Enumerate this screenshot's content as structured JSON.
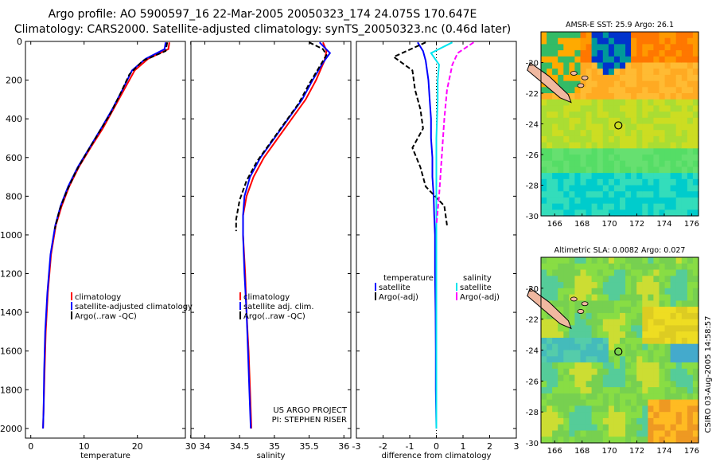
{
  "header": {
    "line1": "Argo profile: AO 5900597_16 22-Mar-2005 20050323_174 24.075S 170.647E",
    "line2": "Climatology: CARS2000. Satellite-adjusted climatology: synTS_20050323.nc (0.46d later)"
  },
  "credit": {
    "line1": "US ARGO PROJECT",
    "line2": "PI: STEPHEN RISER"
  },
  "side_stamp": "CSIRO 03-Aug-2005 14:58:57",
  "colors": {
    "climatology": "#ff0000",
    "satellite": "#0000ff",
    "argo": "#000000",
    "salinity": "#00e5ee",
    "sal_argo": "#ff00ff"
  },
  "chart_data": [
    {
      "type": "line",
      "id": "temperature",
      "xlabel": "temperature",
      "ylabel": "depth",
      "xlim": [
        -1,
        29
      ],
      "ylim": [
        2050,
        0
      ],
      "xticks": [
        0,
        10,
        20,
        30
      ],
      "yticks": [
        0,
        200,
        400,
        600,
        800,
        1000,
        1200,
        1400,
        1600,
        1800,
        2000
      ],
      "legend": [
        "climatology",
        "satellite-adjusted climatology",
        "Argo(..raw  -QC)"
      ],
      "series": [
        {
          "name": "climatology",
          "color": "#ff0000",
          "dash": "",
          "points": [
            [
              26,
              5
            ],
            [
              25.8,
              40
            ],
            [
              22,
              90
            ],
            [
              19.5,
              150
            ],
            [
              17.5,
              250
            ],
            [
              15.5,
              350
            ],
            [
              13.5,
              450
            ],
            [
              11.2,
              550
            ],
            [
              9,
              650
            ],
            [
              7.2,
              750
            ],
            [
              5.8,
              850
            ],
            [
              4.7,
              950
            ],
            [
              3.8,
              1100
            ],
            [
              3.2,
              1300
            ],
            [
              2.8,
              1500
            ],
            [
              2.6,
              1700
            ],
            [
              2.4,
              1900
            ],
            [
              2.3,
              2000
            ]
          ]
        },
        {
          "name": "satellite",
          "color": "#0000ff",
          "dash": "",
          "points": [
            [
              25.3,
              5
            ],
            [
              25.1,
              40
            ],
            [
              21.5,
              90
            ],
            [
              19,
              150
            ],
            [
              17.2,
              250
            ],
            [
              15.3,
              350
            ],
            [
              13.2,
              450
            ],
            [
              11,
              550
            ],
            [
              8.8,
              650
            ],
            [
              7,
              750
            ],
            [
              5.6,
              850
            ],
            [
              4.6,
              950
            ],
            [
              3.7,
              1100
            ],
            [
              3.1,
              1300
            ],
            [
              2.7,
              1500
            ],
            [
              2.5,
              1700
            ],
            [
              2.4,
              1900
            ],
            [
              2.3,
              2000
            ]
          ]
        },
        {
          "name": "argo",
          "color": "#000000",
          "dash": "6,3",
          "points": [
            [
              25.6,
              5
            ],
            [
              25.3,
              50
            ],
            [
              21,
              100
            ],
            [
              18.5,
              170
            ],
            [
              16.8,
              270
            ],
            [
              15,
              370
            ],
            [
              12.8,
              470
            ],
            [
              10.6,
              570
            ],
            [
              8.5,
              670
            ],
            [
              6.8,
              770
            ],
            [
              5.4,
              870
            ],
            [
              4.5,
              970
            ]
          ]
        }
      ]
    },
    {
      "type": "line",
      "id": "salinity",
      "xlabel": "salinity",
      "ylabel": "depth",
      "xlim": [
        33.8,
        36.1
      ],
      "ylim": [
        2050,
        0
      ],
      "xticks": [
        34,
        34.5,
        35,
        35.5,
        36
      ],
      "legend": [
        "climatology",
        "satellite adj. clim.",
        "Argo(..raw  -QC)"
      ],
      "series": [
        {
          "name": "climatology",
          "color": "#ff0000",
          "dash": "",
          "points": [
            [
              35.7,
              5
            ],
            [
              35.75,
              50
            ],
            [
              35.72,
              100
            ],
            [
              35.6,
              200
            ],
            [
              35.45,
              300
            ],
            [
              35.25,
              400
            ],
            [
              35.05,
              500
            ],
            [
              34.85,
              600
            ],
            [
              34.7,
              700
            ],
            [
              34.6,
              800
            ],
            [
              34.55,
              900
            ],
            [
              34.55,
              1000
            ],
            [
              34.58,
              1200
            ],
            [
              34.6,
              1400
            ],
            [
              34.63,
              1600
            ],
            [
              34.65,
              1800
            ],
            [
              34.67,
              2000
            ]
          ]
        },
        {
          "name": "satellite",
          "color": "#0000ff",
          "dash": "",
          "points": [
            [
              35.65,
              5
            ],
            [
              35.8,
              60
            ],
            [
              35.7,
              110
            ],
            [
              35.55,
              200
            ],
            [
              35.4,
              300
            ],
            [
              35.2,
              400
            ],
            [
              35,
              500
            ],
            [
              34.8,
              600
            ],
            [
              34.65,
              700
            ],
            [
              34.57,
              800
            ],
            [
              34.55,
              900
            ],
            [
              34.55,
              1000
            ],
            [
              34.57,
              1200
            ],
            [
              34.6,
              1400
            ],
            [
              34.62,
              1600
            ],
            [
              34.64,
              1800
            ],
            [
              34.66,
              2000
            ]
          ]
        },
        {
          "name": "argo",
          "color": "#000000",
          "dash": "6,3",
          "points": [
            [
              35.5,
              5
            ],
            [
              35.7,
              40
            ],
            [
              35.75,
              70
            ],
            [
              35.65,
              130
            ],
            [
              35.5,
              220
            ],
            [
              35.35,
              320
            ],
            [
              35.15,
              420
            ],
            [
              34.95,
              520
            ],
            [
              34.75,
              620
            ],
            [
              34.6,
              720
            ],
            [
              34.5,
              820
            ],
            [
              34.45,
              920
            ],
            [
              34.45,
              980
            ]
          ]
        }
      ]
    },
    {
      "type": "line",
      "id": "difference",
      "xlabel": "difference from climatology",
      "ylabel": "depth",
      "xlim": [
        -3,
        3
      ],
      "ylim": [
        2050,
        0
      ],
      "xticks": [
        -3,
        -2,
        -1,
        0,
        1,
        2,
        3
      ],
      "legend_temperature": {
        "title": "temperature",
        "items": [
          "satellite",
          "Argo(-adj)"
        ]
      },
      "legend_salinity": {
        "title": "salinity",
        "items": [
          "satellite",
          "Argo(-adj)"
        ]
      },
      "series": [
        {
          "name": "temperature satellite",
          "color": "#0000ff",
          "dash": "",
          "points": [
            [
              -0.7,
              5
            ],
            [
              -0.5,
              50
            ],
            [
              -0.4,
              100
            ],
            [
              -0.3,
              200
            ],
            [
              -0.25,
              300
            ],
            [
              -0.2,
              400
            ],
            [
              -0.2,
              500
            ],
            [
              -0.15,
              600
            ],
            [
              -0.15,
              700
            ],
            [
              -0.1,
              800
            ],
            [
              -0.08,
              900
            ],
            [
              -0.05,
              1000
            ],
            [
              -0.05,
              1200
            ],
            [
              -0.03,
              1400
            ],
            [
              -0.02,
              1600
            ],
            [
              -0.02,
              1800
            ],
            [
              0,
              2000
            ]
          ]
        },
        {
          "name": "temperature Argo",
          "color": "#000000",
          "dash": "6,3",
          "points": [
            [
              -0.4,
              5
            ],
            [
              -1.6,
              80
            ],
            [
              -0.9,
              150
            ],
            [
              -0.8,
              250
            ],
            [
              -0.6,
              350
            ],
            [
              -0.5,
              450
            ],
            [
              -0.9,
              550
            ],
            [
              -0.6,
              650
            ],
            [
              -0.4,
              750
            ],
            [
              0.3,
              850
            ],
            [
              0.4,
              950
            ]
          ]
        },
        {
          "name": "salinity satellite",
          "color": "#00e5ee",
          "dash": "",
          "points": [
            [
              0.6,
              5
            ],
            [
              -0.2,
              60
            ],
            [
              0.1,
              120
            ],
            [
              0.05,
              200
            ],
            [
              0.05,
              300
            ],
            [
              0,
              500
            ],
            [
              0,
              800
            ],
            [
              0,
              1200
            ],
            [
              0,
              1600
            ],
            [
              0,
              2000
            ]
          ]
        },
        {
          "name": "salinity Argo",
          "color": "#ff00ff",
          "dash": "6,3",
          "points": [
            [
              1.4,
              5
            ],
            [
              0.8,
              60
            ],
            [
              0.6,
              120
            ],
            [
              0.4,
              250
            ],
            [
              0.3,
              400
            ],
            [
              0.2,
              600
            ],
            [
              0.1,
              800
            ],
            [
              0,
              950
            ]
          ]
        }
      ]
    },
    {
      "type": "heatmap",
      "id": "sst_map",
      "title": "AMSR-E SST: 25.9 Argo: 26.1",
      "xlim": [
        165,
        176.5
      ],
      "ylim": [
        -30,
        -18
      ],
      "xticks": [
        166,
        168,
        170,
        172,
        174,
        176
      ],
      "yticks": [
        -20,
        -22,
        -24,
        -26,
        -28,
        -30
      ],
      "float_position": {
        "lon": 170.65,
        "lat": -24.1
      }
    },
    {
      "type": "heatmap",
      "id": "sla_map",
      "title": "Altimetric SLA: 0.0082 Argo: 0.027",
      "xlim": [
        165,
        176.5
      ],
      "ylim": [
        -30,
        -18
      ],
      "xticks": [
        166,
        168,
        170,
        172,
        174,
        176
      ],
      "yticks": [
        -20,
        -22,
        -24,
        -26,
        -28,
        -30
      ],
      "float_position": {
        "lon": 170.65,
        "lat": -24.1
      }
    }
  ]
}
